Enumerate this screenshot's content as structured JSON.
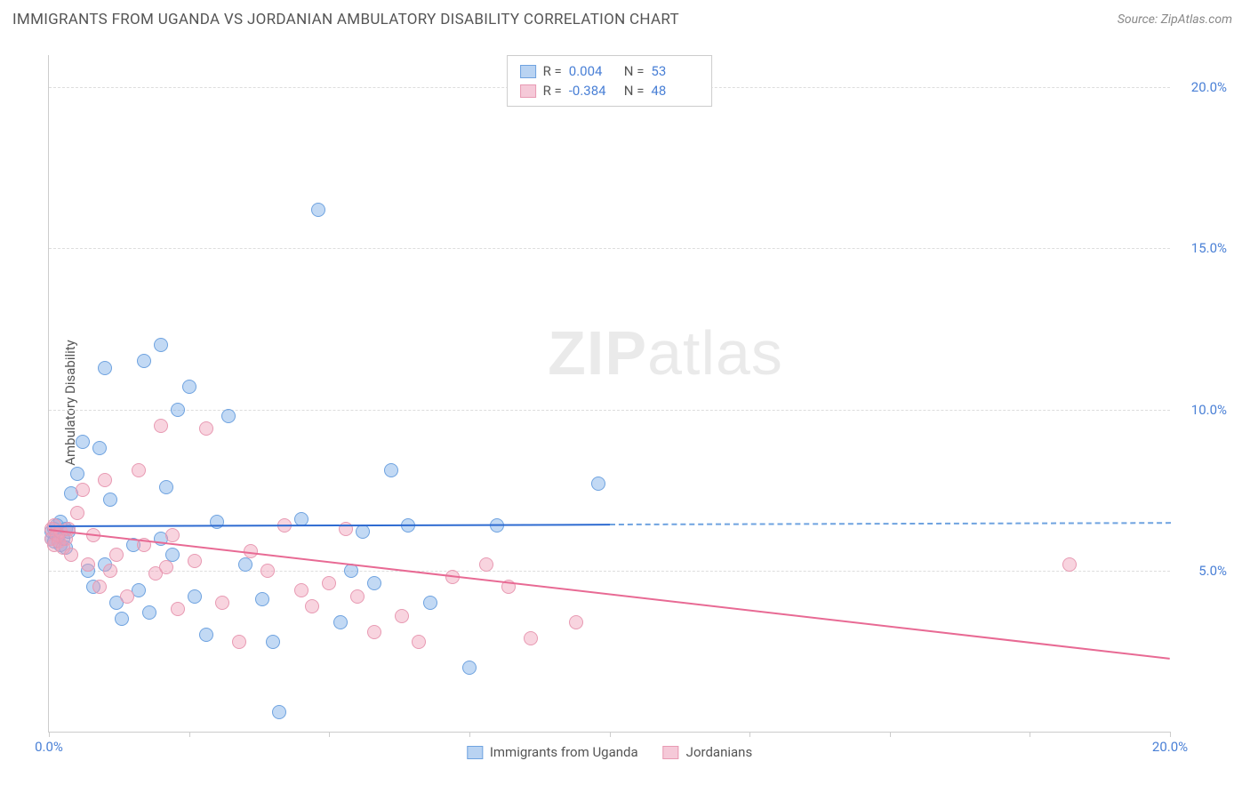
{
  "header": {
    "title": "IMMIGRANTS FROM UGANDA VS JORDANIAN AMBULATORY DISABILITY CORRELATION CHART",
    "source": "Source: ZipAtlas.com"
  },
  "watermark": {
    "zip": "ZIP",
    "atlas": "atlas"
  },
  "chart": {
    "type": "scatter",
    "ylabel": "Ambulatory Disability",
    "xlim": [
      0,
      20
    ],
    "ylim": [
      0,
      21
    ],
    "xtick_positions": [
      0,
      2.5,
      5,
      7.5,
      10,
      12.5,
      15,
      17.5,
      20
    ],
    "xtick_labels": {
      "0": "0.0%",
      "20": "20.0%"
    },
    "ytick_positions": [
      5,
      10,
      15,
      20
    ],
    "ytick_labels": {
      "5": "5.0%",
      "10": "10.0%",
      "15": "15.0%",
      "20": "20.0%"
    },
    "grid_color": "#dddddd",
    "axis_color": "#cccccc",
    "background_color": "#ffffff",
    "series": [
      {
        "name": "Immigrants from Uganda",
        "color_fill": "rgba(120,170,230,0.45)",
        "color_stroke": "#6fa3e0",
        "trend_color": "#2e6bd1",
        "trend_dash_color": "#6fa3e0",
        "legend_swatch_fill": "#b9d3f2",
        "legend_swatch_border": "#6fa3e0",
        "R": "0.004",
        "N": "53",
        "trend": {
          "x1": 0,
          "y1": 6.4,
          "x2": 10,
          "y2": 6.45,
          "x2_dash": 20,
          "y2_dash": 6.5
        },
        "marker_radius": 8,
        "points": [
          [
            0.05,
            6.2
          ],
          [
            0.05,
            6.0
          ],
          [
            0.1,
            6.3
          ],
          [
            0.1,
            5.9
          ],
          [
            0.15,
            6.4
          ],
          [
            0.18,
            6.1
          ],
          [
            0.2,
            5.8
          ],
          [
            0.2,
            6.5
          ],
          [
            0.25,
            6.0
          ],
          [
            0.3,
            6.3
          ],
          [
            0.3,
            5.7
          ],
          [
            0.35,
            6.2
          ],
          [
            0.4,
            7.4
          ],
          [
            0.5,
            8.0
          ],
          [
            0.6,
            9.0
          ],
          [
            0.7,
            5.0
          ],
          [
            0.8,
            4.5
          ],
          [
            0.9,
            8.8
          ],
          [
            1.0,
            11.3
          ],
          [
            1.0,
            5.2
          ],
          [
            1.1,
            7.2
          ],
          [
            1.2,
            4.0
          ],
          [
            1.3,
            3.5
          ],
          [
            1.5,
            5.8
          ],
          [
            1.6,
            4.4
          ],
          [
            1.7,
            11.5
          ],
          [
            1.8,
            3.7
          ],
          [
            2.0,
            12.0
          ],
          [
            2.0,
            6.0
          ],
          [
            2.1,
            7.6
          ],
          [
            2.2,
            5.5
          ],
          [
            2.3,
            10.0
          ],
          [
            2.5,
            10.7
          ],
          [
            2.6,
            4.2
          ],
          [
            2.8,
            3.0
          ],
          [
            3.0,
            6.5
          ],
          [
            3.2,
            9.8
          ],
          [
            3.5,
            5.2
          ],
          [
            3.8,
            4.1
          ],
          [
            4.0,
            2.8
          ],
          [
            4.1,
            0.6
          ],
          [
            4.5,
            6.6
          ],
          [
            4.8,
            16.2
          ],
          [
            5.2,
            3.4
          ],
          [
            5.4,
            5.0
          ],
          [
            5.6,
            6.2
          ],
          [
            5.8,
            4.6
          ],
          [
            6.1,
            8.1
          ],
          [
            6.4,
            6.4
          ],
          [
            6.8,
            4.0
          ],
          [
            7.5,
            2.0
          ],
          [
            8.0,
            6.4
          ],
          [
            9.8,
            7.7
          ]
        ]
      },
      {
        "name": "Jordanians",
        "color_fill": "rgba(240,160,185,0.45)",
        "color_stroke": "#e89ab3",
        "trend_color": "#e86a94",
        "legend_swatch_fill": "#f5c9d8",
        "legend_swatch_border": "#e89ab3",
        "R": "-0.384",
        "N": "48",
        "trend": {
          "x1": 0,
          "y1": 6.3,
          "x2": 20,
          "y2": 2.3
        },
        "marker_radius": 8,
        "points": [
          [
            0.05,
            6.3
          ],
          [
            0.05,
            6.0
          ],
          [
            0.1,
            6.4
          ],
          [
            0.1,
            5.8
          ],
          [
            0.15,
            6.1
          ],
          [
            0.18,
            5.9
          ],
          [
            0.2,
            6.2
          ],
          [
            0.25,
            5.7
          ],
          [
            0.3,
            6.0
          ],
          [
            0.35,
            6.3
          ],
          [
            0.4,
            5.5
          ],
          [
            0.5,
            6.8
          ],
          [
            0.6,
            7.5
          ],
          [
            0.7,
            5.2
          ],
          [
            0.8,
            6.1
          ],
          [
            0.9,
            4.5
          ],
          [
            1.0,
            7.8
          ],
          [
            1.1,
            5.0
          ],
          [
            1.2,
            5.5
          ],
          [
            1.4,
            4.2
          ],
          [
            1.6,
            8.1
          ],
          [
            1.7,
            5.8
          ],
          [
            1.9,
            4.9
          ],
          [
            2.0,
            9.5
          ],
          [
            2.1,
            5.1
          ],
          [
            2.2,
            6.1
          ],
          [
            2.3,
            3.8
          ],
          [
            2.6,
            5.3
          ],
          [
            2.8,
            9.4
          ],
          [
            3.1,
            4.0
          ],
          [
            3.4,
            2.8
          ],
          [
            3.6,
            5.6
          ],
          [
            3.9,
            5.0
          ],
          [
            4.2,
            6.4
          ],
          [
            4.5,
            4.4
          ],
          [
            4.7,
            3.9
          ],
          [
            5.0,
            4.6
          ],
          [
            5.3,
            6.3
          ],
          [
            5.5,
            4.2
          ],
          [
            5.8,
            3.1
          ],
          [
            6.3,
            3.6
          ],
          [
            6.6,
            2.8
          ],
          [
            7.2,
            4.8
          ],
          [
            7.8,
            5.2
          ],
          [
            8.2,
            4.5
          ],
          [
            8.6,
            2.9
          ],
          [
            9.4,
            3.4
          ],
          [
            18.2,
            5.2
          ]
        ]
      }
    ],
    "bottom_legend": [
      {
        "label": "Immigrants from Uganda",
        "fill": "#b9d3f2",
        "border": "#6fa3e0"
      },
      {
        "label": "Jordanians",
        "fill": "#f5c9d8",
        "border": "#e89ab3"
      }
    ],
    "top_legend": {
      "r_label": "R =",
      "n_label": "N ="
    }
  }
}
